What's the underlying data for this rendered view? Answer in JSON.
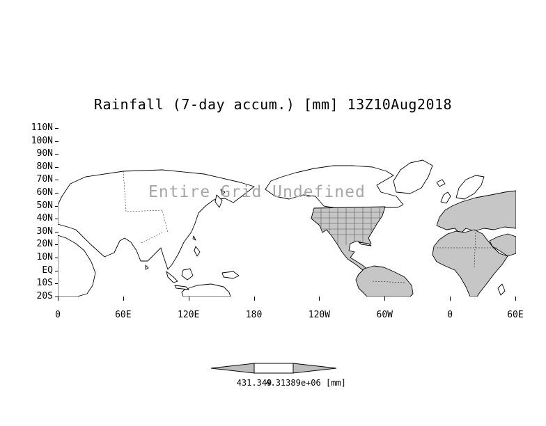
{
  "title": "Rainfall (7-day accum.) [mm] 13Z10Aug2018",
  "watermark": "Entire Grid Undefined",
  "axes": {
    "y_ticks": [
      "110N",
      "100N",
      "90N",
      "80N",
      "70N",
      "60N",
      "50N",
      "40N",
      "30N",
      "20N",
      "10N",
      "EQ",
      "10S",
      "20S"
    ],
    "x_ticks": [
      "0",
      "60E",
      "120E",
      "180",
      "120W",
      "60W",
      "0",
      "60E"
    ]
  },
  "legend": {
    "min_label": "431.349",
    "max_label": "4.31389e+06",
    "units": "[mm]"
  },
  "colors": {
    "land_shaded": "#c6c6c6",
    "coastline": "#000000",
    "watermark_gray": "#a6a6a6",
    "background": "#ffffff"
  },
  "chart_data": {
    "type": "heatmap",
    "title": "Rainfall (7-day accum.) [mm] 13Z10Aug2018",
    "variable": "Rainfall (7-day accum.)",
    "units": "mm",
    "valid_time": "13Z10Aug2018",
    "x_tick_labels": [
      "0",
      "60E",
      "120E",
      "180",
      "120W",
      "60W",
      "0",
      "60E"
    ],
    "y_tick_labels": [
      "110N",
      "100N",
      "90N",
      "80N",
      "70N",
      "60N",
      "50N",
      "40N",
      "30N",
      "20N",
      "10N",
      "EQ",
      "10S",
      "20S"
    ],
    "grid_status": "Entire Grid Undefined",
    "data_values": [],
    "colorbar": {
      "labels": [
        "431.349",
        "4.31389e+06"
      ],
      "units_label": "[mm]",
      "shape": "left-arrow | white-box | right-arrow"
    },
    "legend_position": "bottom-center",
    "grid": false
  }
}
